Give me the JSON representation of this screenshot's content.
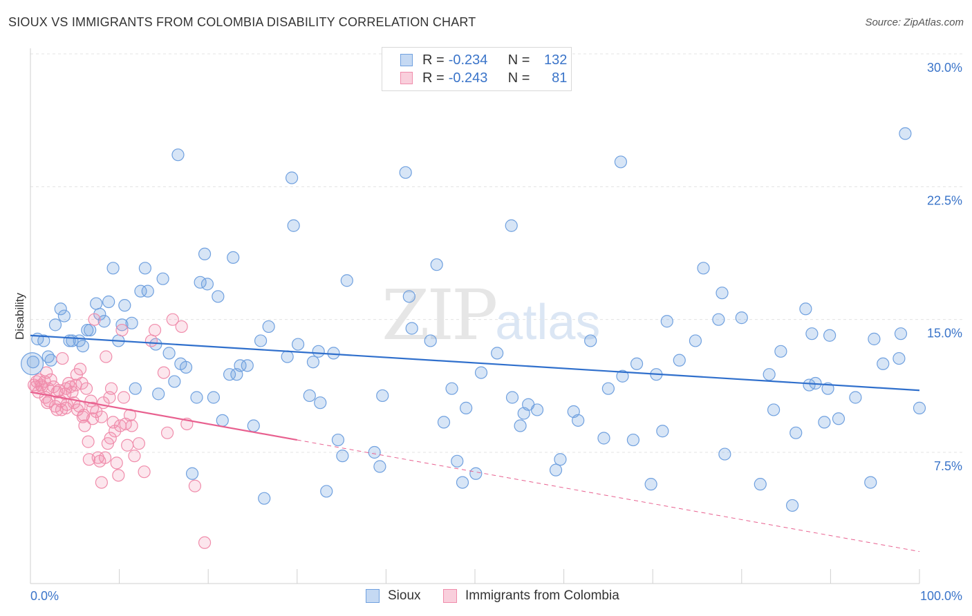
{
  "header": {
    "title": "SIOUX VS IMMIGRANTS FROM COLOMBIA DISABILITY CORRELATION CHART",
    "source": "Source: ZipAtlas.com"
  },
  "watermark": {
    "zip": "ZIP",
    "atlas": "atlas"
  },
  "legend": {
    "rows": [
      {
        "r_label": "R =",
        "r_value": "-0.234",
        "n_label": "N =",
        "n_value": "132"
      },
      {
        "r_label": "R =",
        "r_value": "-0.243",
        "n_label": "N =",
        "n_value": "81"
      }
    ]
  },
  "bottom_legend": {
    "series1": "Sioux",
    "series2": "Immigrants from Colombia"
  },
  "chart_data": {
    "type": "scatter",
    "title": "SIOUX VS IMMIGRANTS FROM COLOMBIA DISABILITY CORRELATION CHART",
    "xlabel": "",
    "ylabel": "Disability",
    "xlim": [
      0,
      100
    ],
    "ylim": [
      0,
      31
    ],
    "y_ticks": [
      7.5,
      15.0,
      22.5,
      30.0
    ],
    "y_tick_labels": [
      "7.5%",
      "15.0%",
      "22.5%",
      "30.0%"
    ],
    "x_tick_labels": [
      "0.0%",
      "100.0%"
    ],
    "grid": "horizontal dashed",
    "legend_placement": "top-center",
    "colors": {
      "sioux": "#6fa0df",
      "colombia": "#f08cab",
      "sioux_line": "#2f6fcc",
      "colombia_line": "#e8608f",
      "axis_text": "#3a74c9"
    },
    "series": [
      {
        "name": "Sioux",
        "trend": {
          "x0": 0,
          "y0": 14.1,
          "x1": 100,
          "y1": 11.0
        },
        "points": [
          [
            0.3,
            12.6
          ],
          [
            0.8,
            13.9
          ],
          [
            1.5,
            13.8
          ],
          [
            2.0,
            12.9
          ],
          [
            2.3,
            12.7
          ],
          [
            2.8,
            14.7
          ],
          [
            3.4,
            15.6
          ],
          [
            3.8,
            15.2
          ],
          [
            4.4,
            13.8
          ],
          [
            4.7,
            13.8
          ],
          [
            5.5,
            13.8
          ],
          [
            5.9,
            13.5
          ],
          [
            6.4,
            14.4
          ],
          [
            6.7,
            14.4
          ],
          [
            7.4,
            15.9
          ],
          [
            7.8,
            15.3
          ],
          [
            8.3,
            14.9
          ],
          [
            8.8,
            16.0
          ],
          [
            9.3,
            17.9
          ],
          [
            9.9,
            13.8
          ],
          [
            10.3,
            14.7
          ],
          [
            10.6,
            15.8
          ],
          [
            11.4,
            14.8
          ],
          [
            11.8,
            11.1
          ],
          [
            12.4,
            16.6
          ],
          [
            12.9,
            17.9
          ],
          [
            13.2,
            16.6
          ],
          [
            14.1,
            13.6
          ],
          [
            14.4,
            10.8
          ],
          [
            14.9,
            17.3
          ],
          [
            15.6,
            13.1
          ],
          [
            16.2,
            11.5
          ],
          [
            16.6,
            24.3
          ],
          [
            16.9,
            12.5
          ],
          [
            17.5,
            12.3
          ],
          [
            18.2,
            6.3
          ],
          [
            18.7,
            10.6
          ],
          [
            19.1,
            17.1
          ],
          [
            19.6,
            18.7
          ],
          [
            19.9,
            17.0
          ],
          [
            20.6,
            10.6
          ],
          [
            21.1,
            16.3
          ],
          [
            21.6,
            9.3
          ],
          [
            22.4,
            11.9
          ],
          [
            22.8,
            18.5
          ],
          [
            23.2,
            11.9
          ],
          [
            23.6,
            12.4
          ],
          [
            24.4,
            12.4
          ],
          [
            25.1,
            9.0
          ],
          [
            25.9,
            13.8
          ],
          [
            26.3,
            4.9
          ],
          [
            26.8,
            14.6
          ],
          [
            28.9,
            12.9
          ],
          [
            29.4,
            23.0
          ],
          [
            29.6,
            20.3
          ],
          [
            30.1,
            13.6
          ],
          [
            31.4,
            10.7
          ],
          [
            31.8,
            12.6
          ],
          [
            32.4,
            13.2
          ],
          [
            32.6,
            10.3
          ],
          [
            33.3,
            5.3
          ],
          [
            34.1,
            13.1
          ],
          [
            34.6,
            8.2
          ],
          [
            35.1,
            7.3
          ],
          [
            35.6,
            17.2
          ],
          [
            38.7,
            7.5
          ],
          [
            39.3,
            6.7
          ],
          [
            39.6,
            10.7
          ],
          [
            42.6,
            16.3
          ],
          [
            42.9,
            14.5
          ],
          [
            42.2,
            23.3
          ],
          [
            45.0,
            13.8
          ],
          [
            45.7,
            18.1
          ],
          [
            46.5,
            9.2
          ],
          [
            47.4,
            11.1
          ],
          [
            48.0,
            7.0
          ],
          [
            48.6,
            5.8
          ],
          [
            49.0,
            10.0
          ],
          [
            50.1,
            6.3
          ],
          [
            50.7,
            12.0
          ],
          [
            52.5,
            13.1
          ],
          [
            54.1,
            20.3
          ],
          [
            54.2,
            10.6
          ],
          [
            55.1,
            9.0
          ],
          [
            55.5,
            9.7
          ],
          [
            56.0,
            10.2
          ],
          [
            57.0,
            9.9
          ],
          [
            59.1,
            6.5
          ],
          [
            59.6,
            7.1
          ],
          [
            61.1,
            9.8
          ],
          [
            61.6,
            9.3
          ],
          [
            63.0,
            13.8
          ],
          [
            64.5,
            8.3
          ],
          [
            65.0,
            11.1
          ],
          [
            66.4,
            23.9
          ],
          [
            66.6,
            11.8
          ],
          [
            67.8,
            8.2
          ],
          [
            68.2,
            12.5
          ],
          [
            69.8,
            5.7
          ],
          [
            70.4,
            11.9
          ],
          [
            71.1,
            8.7
          ],
          [
            71.6,
            14.9
          ],
          [
            73.0,
            12.7
          ],
          [
            74.8,
            13.8
          ],
          [
            75.7,
            17.9
          ],
          [
            77.4,
            15.0
          ],
          [
            77.8,
            16.5
          ],
          [
            78.1,
            7.4
          ],
          [
            80.0,
            15.1
          ],
          [
            82.1,
            5.7
          ],
          [
            83.1,
            11.9
          ],
          [
            83.6,
            9.9
          ],
          [
            84.4,
            13.2
          ],
          [
            85.7,
            4.5
          ],
          [
            86.1,
            8.6
          ],
          [
            87.2,
            15.6
          ],
          [
            87.6,
            11.3
          ],
          [
            87.9,
            14.2
          ],
          [
            88.3,
            11.4
          ],
          [
            89.3,
            9.2
          ],
          [
            89.7,
            11.1
          ],
          [
            89.9,
            14.1
          ],
          [
            90.9,
            9.4
          ],
          [
            92.8,
            10.6
          ],
          [
            94.5,
            5.8
          ],
          [
            94.9,
            13.9
          ],
          [
            95.9,
            12.5
          ],
          [
            97.7,
            12.8
          ],
          [
            97.9,
            14.2
          ],
          [
            98.4,
            25.5
          ],
          [
            100.0,
            10.0
          ]
        ]
      },
      {
        "name": "Immigrants from Colombia",
        "trend": {
          "x0": 0,
          "y0": 10.9,
          "x1": 30,
          "y1": 8.2
        },
        "trend_ext": {
          "x0": 30,
          "y0": 8.2,
          "x1": 100,
          "y1": 1.9
        },
        "points": [
          [
            0.4,
            11.3
          ],
          [
            0.7,
            11.5
          ],
          [
            1.0,
            11.6
          ],
          [
            1.3,
            11.2
          ],
          [
            1.6,
            11.5
          ],
          [
            1.7,
            10.6
          ],
          [
            1.9,
            10.3
          ],
          [
            2.1,
            10.4
          ],
          [
            2.3,
            11.6
          ],
          [
            2.6,
            11.2
          ],
          [
            2.8,
            10.1
          ],
          [
            3.0,
            10.9
          ],
          [
            3.2,
            11.0
          ],
          [
            3.4,
            10.4
          ],
          [
            3.5,
            9.9
          ],
          [
            3.6,
            12.8
          ],
          [
            3.9,
            10.8
          ],
          [
            4.0,
            11.1
          ],
          [
            4.1,
            10.2
          ],
          [
            4.3,
            11.4
          ],
          [
            4.5,
            11.2
          ],
          [
            4.7,
            10.9
          ],
          [
            4.9,
            10.3
          ],
          [
            5.1,
            11.3
          ],
          [
            5.3,
            9.9
          ],
          [
            5.5,
            10.1
          ],
          [
            5.6,
            12.2
          ],
          [
            5.8,
            11.4
          ],
          [
            5.9,
            9.5
          ],
          [
            6.1,
            9.0
          ],
          [
            6.3,
            11.1
          ],
          [
            6.5,
            8.1
          ],
          [
            6.6,
            7.1
          ],
          [
            6.8,
            10.4
          ],
          [
            7.0,
            10.0
          ],
          [
            7.2,
            15.0
          ],
          [
            7.4,
            9.8
          ],
          [
            7.6,
            7.2
          ],
          [
            7.8,
            7.0
          ],
          [
            8.0,
            9.5
          ],
          [
            8.2,
            10.3
          ],
          [
            8.4,
            7.2
          ],
          [
            8.5,
            12.9
          ],
          [
            8.7,
            8.0
          ],
          [
            8.9,
            10.6
          ],
          [
            9.1,
            11.1
          ],
          [
            9.3,
            9.2
          ],
          [
            9.5,
            8.7
          ],
          [
            9.7,
            6.9
          ],
          [
            9.9,
            6.2
          ],
          [
            10.1,
            9.0
          ],
          [
            10.3,
            14.4
          ],
          [
            10.5,
            10.6
          ],
          [
            10.7,
            9.1
          ],
          [
            10.9,
            7.9
          ],
          [
            11.2,
            9.6
          ],
          [
            11.4,
            9.0
          ],
          [
            11.7,
            7.3
          ],
          [
            12.2,
            8.0
          ],
          [
            12.8,
            6.4
          ],
          [
            13.6,
            13.8
          ],
          [
            14.0,
            14.4
          ],
          [
            15.0,
            12.0
          ],
          [
            15.4,
            8.6
          ],
          [
            16.0,
            15.0
          ],
          [
            17.0,
            14.6
          ],
          [
            17.6,
            9.1
          ],
          [
            18.5,
            5.6
          ],
          [
            19.6,
            2.4
          ],
          [
            8.0,
            5.8
          ],
          [
            9.0,
            8.3
          ],
          [
            5.2,
            11.9
          ],
          [
            6.0,
            9.6
          ],
          [
            7.0,
            9.4
          ],
          [
            4.0,
            10.0
          ],
          [
            3.0,
            9.9
          ],
          [
            2.0,
            11.1
          ],
          [
            1.2,
            11.3
          ],
          [
            0.9,
            10.9
          ],
          [
            0.6,
            11.2
          ],
          [
            1.8,
            12.0
          ]
        ]
      }
    ]
  }
}
